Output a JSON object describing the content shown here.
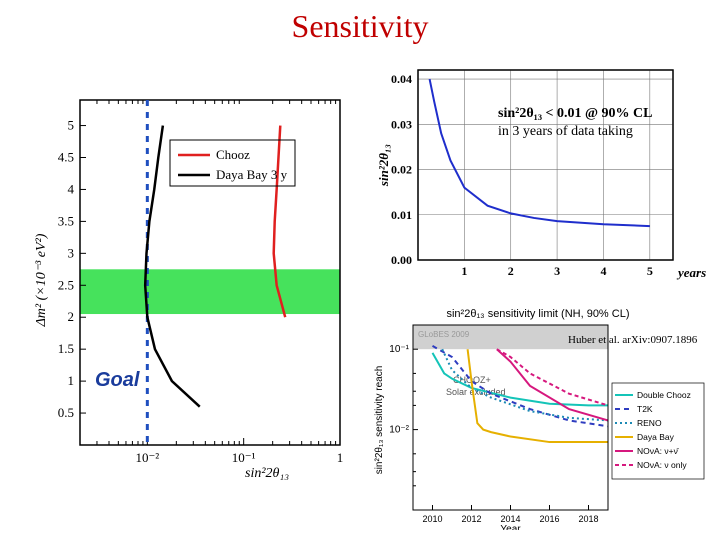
{
  "title": "Sensitivity",
  "left_chart": {
    "type": "line",
    "annotation": "Goal",
    "annotation_color": "#1a3c9c",
    "annotation_style": "italic",
    "legend": [
      {
        "label": "Chooz",
        "color": "#e0201f"
      },
      {
        "label": "Daya Bay 3 y",
        "color": "#000000"
      }
    ],
    "x": {
      "label": "sin²2θ₁₃",
      "scale": "log",
      "lim": [
        0.002,
        1.0
      ],
      "ticks": [
        "10⁻²",
        "10⁻¹",
        "1"
      ],
      "tick_vals": [
        0.01,
        0.1,
        1.0
      ],
      "minor": true
    },
    "y": {
      "label": "Δm² (×10⁻³ eV²)",
      "scale": "linear",
      "lim": [
        0.0,
        5.4
      ],
      "ticks": [
        "0.5",
        "1",
        "1.5",
        "2",
        "2.5",
        "3",
        "3.5",
        "4",
        "4.5",
        "5"
      ]
    },
    "green_band": {
      "y_low": 2.05,
      "y_high": 2.75,
      "color": "#46e25c"
    },
    "vline": {
      "x": 0.01,
      "color": "#1f4fbf",
      "dash": [
        6,
        6
      ],
      "width": 3
    },
    "chooz": {
      "color": "#e0201f",
      "width": 2.5,
      "pts": [
        [
          0.24,
          5.0
        ],
        [
          0.22,
          4.0
        ],
        [
          0.21,
          3.5
        ],
        [
          0.205,
          3.0
        ],
        [
          0.22,
          2.5
        ],
        [
          0.27,
          2.0
        ]
      ]
    },
    "dayabay": {
      "color": "#000000",
      "width": 2.5,
      "pts": [
        [
          0.0145,
          5.0
        ],
        [
          0.013,
          4.5
        ],
        [
          0.0118,
          4.0
        ],
        [
          0.0105,
          3.5
        ],
        [
          0.0098,
          3.0
        ],
        [
          0.0095,
          2.5
        ],
        [
          0.01,
          2.0
        ],
        [
          0.012,
          1.5
        ],
        [
          0.018,
          1.0
        ],
        [
          0.035,
          0.6
        ]
      ]
    },
    "border_color": "#000"
  },
  "tr_chart": {
    "type": "line",
    "annotations": [
      {
        "text_html": "sin²2θ₁₃ < 0.01 @ 90% CL",
        "bold": true
      },
      {
        "text_html": "in 3 years of data taking",
        "bold": false
      }
    ],
    "x": {
      "label": "years",
      "lim": [
        0,
        5.5
      ],
      "ticks": [
        "1",
        "2",
        "3",
        "4",
        "5"
      ],
      "tick_vals": [
        1,
        2,
        3,
        4,
        5
      ]
    },
    "y": {
      "label": "sin²2θ₁₃",
      "lim": [
        0,
        0.042
      ],
      "ticks": [
        "0.00",
        "0.01",
        "0.02",
        "0.03",
        "0.04"
      ],
      "tick_vals": [
        0,
        0.01,
        0.02,
        0.03,
        0.04
      ]
    },
    "grid_color": "#777",
    "curve": {
      "color": "#1f2ecc",
      "width": 2,
      "pts": [
        [
          0.25,
          0.04
        ],
        [
          0.35,
          0.035
        ],
        [
          0.5,
          0.028
        ],
        [
          0.7,
          0.022
        ],
        [
          1.0,
          0.016
        ],
        [
          1.5,
          0.012
        ],
        [
          2.0,
          0.0103
        ],
        [
          2.5,
          0.0093
        ],
        [
          3.0,
          0.0086
        ],
        [
          4.0,
          0.0079
        ],
        [
          5.0,
          0.0075
        ]
      ]
    }
  },
  "br_chart": {
    "type": "line",
    "title": "sin²2θ₁₃ sensitivity limit (NH, 90% CL)",
    "title_fontsize": 11,
    "citation": "Huber et al. arXiv:0907.1896",
    "watermark": "GLoBES 2009",
    "x": {
      "label": "Year",
      "lim": [
        2009,
        2019
      ],
      "ticks": [
        "2010",
        "2012",
        "2014",
        "2016",
        "2018"
      ],
      "tick_vals": [
        2010,
        2012,
        2014,
        2016,
        2018
      ]
    },
    "y": {
      "label": "sin²2θ₁₃ sensitivity reach",
      "scale": "log",
      "lim": [
        0.001,
        0.2
      ],
      "ticks": [
        "10⁻²",
        "10⁻¹"
      ],
      "tick_vals": [
        0.01,
        0.1
      ]
    },
    "excluded": {
      "label": "CHOOZ+\nSolar excluded",
      "y": 0.1,
      "color": "#d0d0d0"
    },
    "legend": [
      {
        "label": "Double Chooz",
        "color": "#14c4b8",
        "dash": null
      },
      {
        "label": "T2K",
        "color": "#2e3cc0",
        "dash": [
          5,
          4
        ]
      },
      {
        "label": "RENO",
        "color": "#1c8ab5",
        "dash": [
          2,
          3
        ]
      },
      {
        "label": "Daya Bay",
        "color": "#e6b000",
        "dash": null
      },
      {
        "label": "NOνA: ν+ν̄",
        "color": "#d6187e",
        "dash": null
      },
      {
        "label": "NOνA: ν only",
        "color": "#d6187e",
        "dash": [
          4,
          3
        ]
      }
    ],
    "series": {
      "double_chooz": [
        [
          2010,
          0.09
        ],
        [
          2010.6,
          0.05
        ],
        [
          2011,
          0.043
        ],
        [
          2012,
          0.033
        ],
        [
          2014,
          0.025
        ],
        [
          2016,
          0.021
        ],
        [
          2018,
          0.02
        ],
        [
          2019,
          0.02
        ]
      ],
      "t2k": [
        [
          2010,
          0.11
        ],
        [
          2011,
          0.08
        ],
        [
          2012,
          0.04
        ],
        [
          2013,
          0.028
        ],
        [
          2015,
          0.018
        ],
        [
          2017,
          0.013
        ],
        [
          2019,
          0.011
        ]
      ],
      "reno": [
        [
          2010.5,
          0.1
        ],
        [
          2011,
          0.055
        ],
        [
          2012,
          0.033
        ],
        [
          2013,
          0.025
        ],
        [
          2015,
          0.017
        ],
        [
          2017,
          0.014
        ],
        [
          2019,
          0.013
        ]
      ],
      "daya_bay": [
        [
          2011.8,
          0.1
        ],
        [
          2012,
          0.04
        ],
        [
          2012.3,
          0.012
        ],
        [
          2012.6,
          0.01
        ],
        [
          2013,
          0.0093
        ],
        [
          2014,
          0.0082
        ],
        [
          2016,
          0.007
        ],
        [
          2018,
          0.007
        ],
        [
          2019,
          0.007
        ]
      ],
      "nova_both": [
        [
          2013.3,
          0.1
        ],
        [
          2014,
          0.07
        ],
        [
          2015,
          0.035
        ],
        [
          2017,
          0.018
        ],
        [
          2019,
          0.013
        ]
      ],
      "nova_nu": [
        [
          2013.3,
          0.1
        ],
        [
          2014,
          0.08
        ],
        [
          2015,
          0.05
        ],
        [
          2017,
          0.028
        ],
        [
          2019,
          0.02
        ]
      ]
    },
    "border_color": "#000",
    "bg_color": "#ffffff"
  }
}
